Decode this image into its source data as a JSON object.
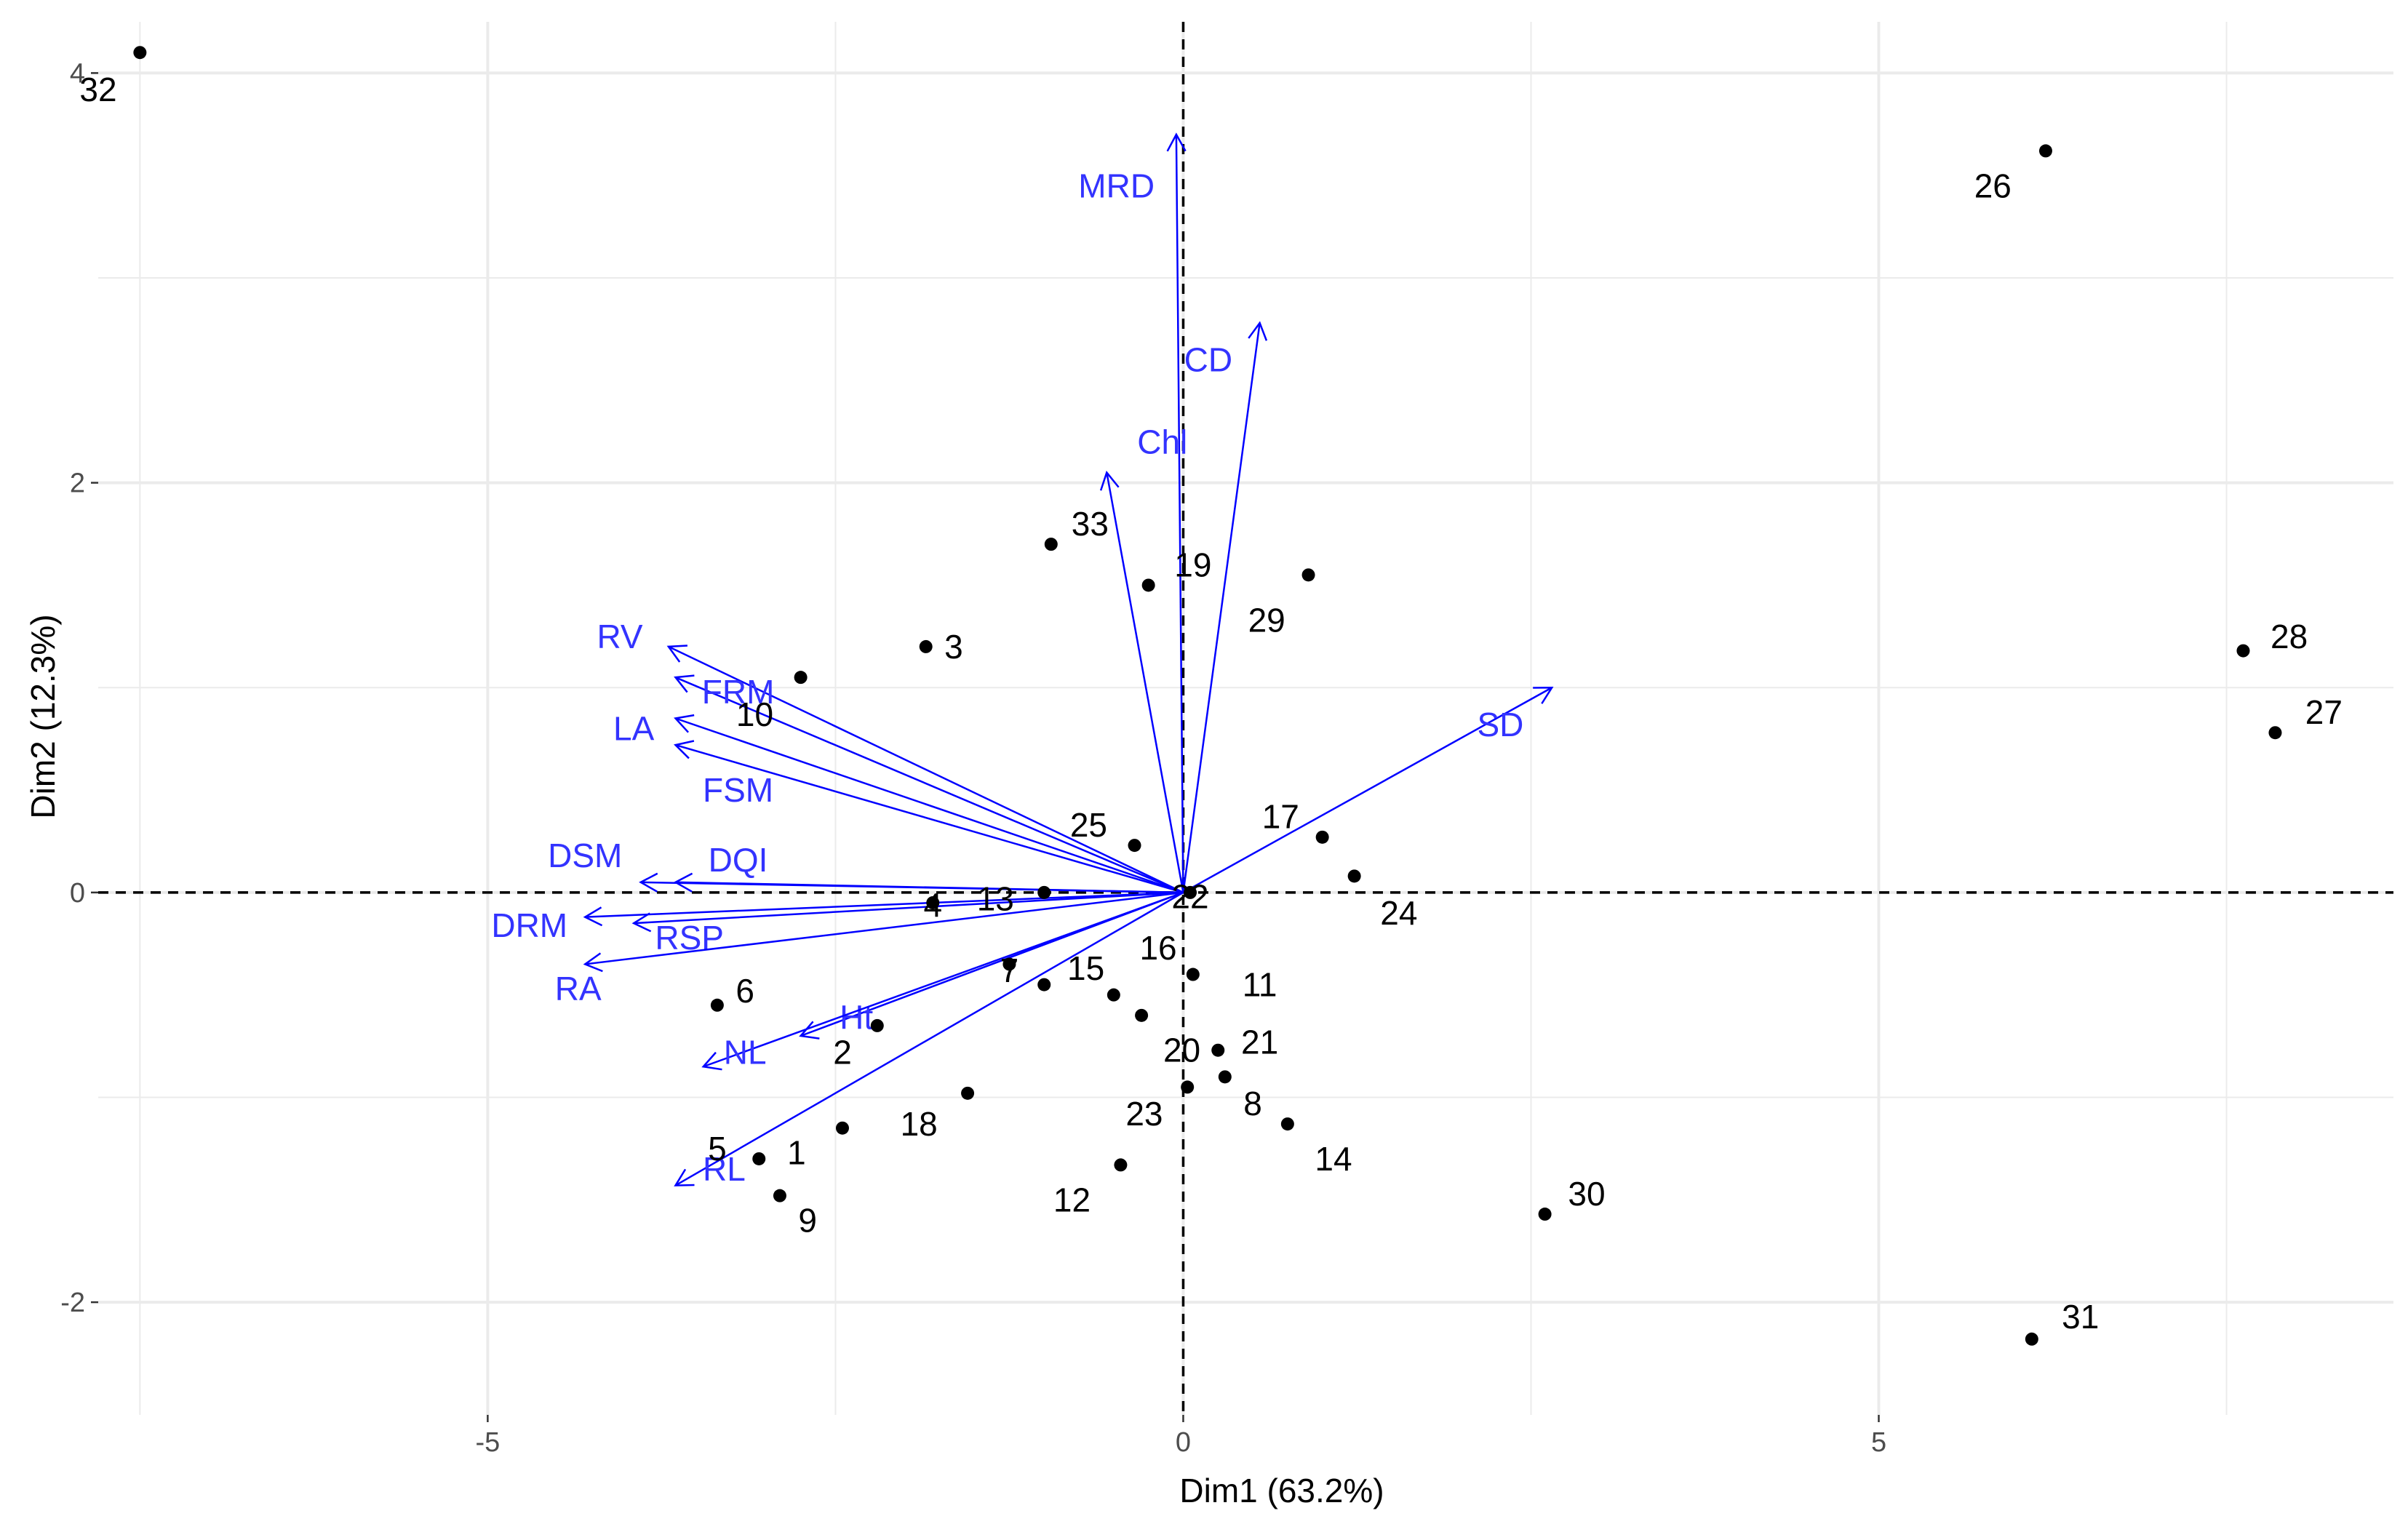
{
  "colors": {
    "grid": "#ebebeb",
    "axis_tick": "#333333",
    "zero_line": "#000000",
    "points": "#000000",
    "arrows": "#0000ff",
    "arrow_labels": "#3333ff"
  },
  "chart_data": {
    "type": "scatter",
    "subtype": "PCA biplot",
    "xlabel": "Dim1 (63.2%)",
    "ylabel": "Dim2 (12.3%)",
    "xlim": [
      -7.8,
      8.7
    ],
    "ylim": [
      -2.55,
      4.25
    ],
    "x_ticks": [
      -5,
      0,
      5
    ],
    "x_tick_labels": [
      "-5",
      "0",
      "5"
    ],
    "y_ticks": [
      -2,
      0,
      2,
      4
    ],
    "y_tick_labels": [
      "-2",
      "0",
      "2",
      "4"
    ],
    "individuals": [
      {
        "label": "1",
        "x": -2.45,
        "y": -1.15,
        "lx": -2.78,
        "ly": -1.27
      },
      {
        "label": "2",
        "x": -2.2,
        "y": -0.65,
        "lx": -2.45,
        "ly": -0.78
      },
      {
        "label": "3",
        "x": -1.85,
        "y": 1.2,
        "lx": -1.65,
        "ly": 1.2
      },
      {
        "label": "4",
        "x": -1.8,
        "y": -0.05,
        "lx": -1.8,
        "ly": -0.06
      },
      {
        "label": "5",
        "x": -3.05,
        "y": -1.3,
        "lx": -3.35,
        "ly": -1.25
      },
      {
        "label": "6",
        "x": -3.35,
        "y": -0.55,
        "lx": -3.15,
        "ly": -0.48
      },
      {
        "label": "7",
        "x": -1.25,
        "y": -0.35,
        "lx": -1.25,
        "ly": -0.38
      },
      {
        "label": "8",
        "x": 0.3,
        "y": -0.9,
        "lx": 0.5,
        "ly": -1.03
      },
      {
        "label": "9",
        "x": -2.9,
        "y": -1.48,
        "lx": -2.7,
        "ly": -1.6
      },
      {
        "label": "10",
        "x": -2.75,
        "y": 1.05,
        "lx": -3.08,
        "ly": 0.87
      },
      {
        "label": "11",
        "x": 0.07,
        "y": -0.4,
        "lx": 0.55,
        "ly": -0.45
      },
      {
        "label": "12",
        "x": -0.45,
        "y": -1.33,
        "lx": -0.8,
        "ly": -1.5
      },
      {
        "label": "13",
        "x": -1.0,
        "y": 0.0,
        "lx": -1.35,
        "ly": -0.03
      },
      {
        "label": "14",
        "x": 0.75,
        "y": -1.13,
        "lx": 1.08,
        "ly": -1.3
      },
      {
        "label": "15",
        "x": -1.0,
        "y": -0.45,
        "lx": -0.7,
        "ly": -0.37
      },
      {
        "label": "16",
        "x": -0.5,
        "y": -0.5,
        "lx": -0.18,
        "ly": -0.27
      },
      {
        "label": "17",
        "x": 1.0,
        "y": 0.27,
        "lx": 0.7,
        "ly": 0.37
      },
      {
        "label": "18",
        "x": -1.55,
        "y": -0.98,
        "lx": -1.9,
        "ly": -1.13
      },
      {
        "label": "19",
        "x": -0.25,
        "y": 1.5,
        "lx": 0.07,
        "ly": 1.6
      },
      {
        "label": "20",
        "x": 0.03,
        "y": -0.95,
        "lx": -0.01,
        "ly": -0.77
      },
      {
        "label": "21",
        "x": 0.25,
        "y": -0.77,
        "lx": 0.55,
        "ly": -0.73
      },
      {
        "label": "22",
        "x": 0.05,
        "y": 0.0,
        "lx": 0.05,
        "ly": -0.02
      },
      {
        "label": "23",
        "x": -0.3,
        "y": -0.6,
        "lx": -0.28,
        "ly": -1.08
      },
      {
        "label": "24",
        "x": 1.23,
        "y": 0.08,
        "lx": 1.55,
        "ly": -0.1
      },
      {
        "label": "25",
        "x": -0.35,
        "y": 0.23,
        "lx": -0.68,
        "ly": 0.33
      },
      {
        "label": "26",
        "x": 6.2,
        "y": 3.62,
        "lx": 5.82,
        "ly": 3.45
      },
      {
        "label": "27",
        "x": 7.85,
        "y": 0.78,
        "lx": 8.2,
        "ly": 0.88
      },
      {
        "label": "28",
        "x": 7.62,
        "y": 1.18,
        "lx": 7.95,
        "ly": 1.25
      },
      {
        "label": "29",
        "x": 0.9,
        "y": 1.55,
        "lx": 0.6,
        "ly": 1.33
      },
      {
        "label": "30",
        "x": 2.6,
        "y": -1.57,
        "lx": 2.9,
        "ly": -1.47
      },
      {
        "label": "31",
        "x": 6.1,
        "y": -2.18,
        "lx": 6.45,
        "ly": -2.07
      },
      {
        "label": "32",
        "x": -7.5,
        "y": 4.1,
        "lx": -7.8,
        "ly": 3.92
      },
      {
        "label": "33",
        "x": -0.95,
        "y": 1.7,
        "lx": -0.67,
        "ly": 1.8
      }
    ],
    "variables": [
      {
        "label": "MRD",
        "x": -0.05,
        "y": 3.7,
        "lx": -0.48,
        "ly": 3.45
      },
      {
        "label": "CD",
        "x": 0.55,
        "y": 2.78,
        "lx": 0.18,
        "ly": 2.6
      },
      {
        "label": "Chl",
        "x": -0.55,
        "y": 2.05,
        "lx": -0.15,
        "ly": 2.2
      },
      {
        "label": "SD",
        "x": 2.65,
        "y": 1.0,
        "lx": 2.28,
        "ly": 0.82
      },
      {
        "label": "RV",
        "x": -3.7,
        "y": 1.2,
        "lx": -4.05,
        "ly": 1.25
      },
      {
        "label": "FRM",
        "x": -3.65,
        "y": 1.05,
        "lx": -3.2,
        "ly": 0.98
      },
      {
        "label": "LA",
        "x": -3.65,
        "y": 0.85,
        "lx": -3.95,
        "ly": 0.8
      },
      {
        "label": "FSM",
        "x": -3.65,
        "y": 0.72,
        "lx": -3.2,
        "ly": 0.5
      },
      {
        "label": "DSM",
        "x": -3.9,
        "y": 0.05,
        "lx": -4.3,
        "ly": 0.18
      },
      {
        "label": "DQI",
        "x": -3.65,
        "y": 0.05,
        "lx": -3.2,
        "ly": 0.16
      },
      {
        "label": "DRM",
        "x": -4.3,
        "y": -0.12,
        "lx": -4.7,
        "ly": -0.16
      },
      {
        "label": "RSP",
        "x": -3.95,
        "y": -0.15,
        "lx": -3.55,
        "ly": -0.22
      },
      {
        "label": "RA",
        "x": -4.3,
        "y": -0.35,
        "lx": -4.35,
        "ly": -0.47
      },
      {
        "label": "Ht",
        "x": -2.75,
        "y": -0.7,
        "lx": -2.35,
        "ly": -0.61
      },
      {
        "label": "NL",
        "x": -3.45,
        "y": -0.85,
        "lx": -3.15,
        "ly": -0.78
      },
      {
        "label": "RL",
        "x": -3.65,
        "y": -1.43,
        "lx": -3.3,
        "ly": -1.35
      }
    ]
  }
}
